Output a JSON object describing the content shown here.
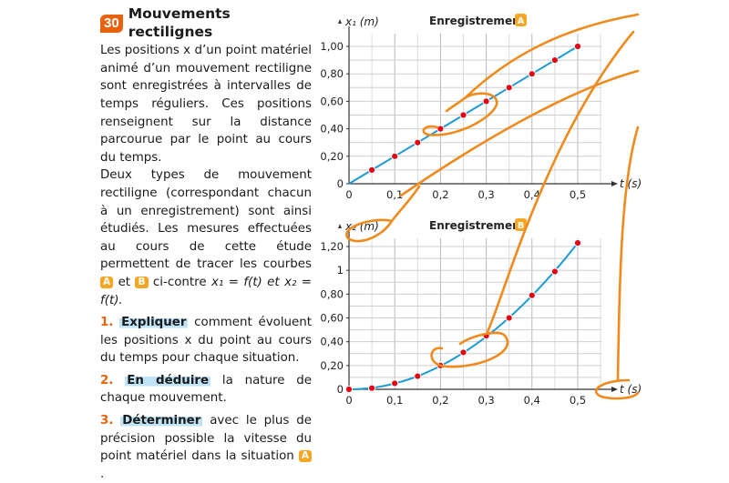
{
  "exercise": {
    "number": "30",
    "title": "Mouvements rectilignes",
    "intro_1": "Les positions x d’un point matériel animé d’un mouvement rectiligne sont enregistrées à intervalles de temps réguliers. Ces positions renseignent sur la distance parcourue par le point au cours du temps.",
    "intro_2a": "Deux types de mouvement rectiligne (correspondant chacun à un enregistrement) sont ainsi étudiés. Les mesures effectuées au cours de cette étude permettent de tracer les courbes",
    "tag_a": "A",
    "and": "et",
    "tag_b": "B",
    "intro_2b": "ci-contre",
    "formula": "x₁ = f(t) et x₂ = f(t).",
    "questions": [
      {
        "num": "1.",
        "verb": "Expliquer",
        "rest": " comment évoluent les positions x du point au cours du temps pour chaque situation."
      },
      {
        "num": "2.",
        "verb": "En déduire",
        "rest": " la nature de chaque mouvement."
      },
      {
        "num": "3.",
        "verb": "Déterminer",
        "rest": " avec le plus de précision possible la vitesse du point matériel dans la situation ",
        "tag": "A",
        "end": "."
      }
    ]
  },
  "colors": {
    "accent_orange": "#e8620e",
    "tag_orange": "#f5a623",
    "curve_blue": "#1a9ad6",
    "point_red": "#e30613",
    "highlight_blue": "#bfe3f7",
    "annotation_orange": "#f08a1c"
  },
  "chart_data": [
    {
      "type": "line",
      "title": "Enregistrement",
      "title_tag": "A",
      "xlabel": "t (s)",
      "ylabel": "x₁ (m)",
      "x": [
        0.05,
        0.1,
        0.15,
        0.2,
        0.25,
        0.3,
        0.35,
        0.4,
        0.45,
        0.5
      ],
      "values": [
        0.1,
        0.2,
        0.3,
        0.4,
        0.5,
        0.6,
        0.7,
        0.8,
        0.9,
        1.0
      ],
      "x_ticks": [
        "0",
        "0,1",
        "0,2",
        "0,3",
        "0,4",
        "0,5"
      ],
      "y_ticks": [
        "0",
        "0,20",
        "0,40",
        "0,60",
        "0,80",
        "1,00"
      ],
      "xlim": [
        0,
        0.55
      ],
      "ylim": [
        0,
        1.1
      ],
      "grid": true
    },
    {
      "type": "line",
      "title": "Enregistrement",
      "title_tag": "B",
      "xlabel": "t (s)",
      "ylabel": "x₂ (m)",
      "x": [
        0,
        0.05,
        0.1,
        0.15,
        0.2,
        0.25,
        0.3,
        0.35,
        0.4,
        0.45,
        0.5
      ],
      "values": [
        0,
        0.01,
        0.05,
        0.11,
        0.2,
        0.31,
        0.45,
        0.6,
        0.79,
        0.99,
        1.23
      ],
      "x_ticks": [
        "0",
        "0,1",
        "0,2",
        "0,3",
        "0,4",
        "0,5"
      ],
      "y_ticks": [
        "0",
        "0,20",
        "0,40",
        "0,60",
        "0,80",
        "1",
        "1,20"
      ],
      "xlim": [
        0,
        0.55
      ],
      "ylim": [
        0,
        1.3
      ],
      "grid": true
    }
  ]
}
